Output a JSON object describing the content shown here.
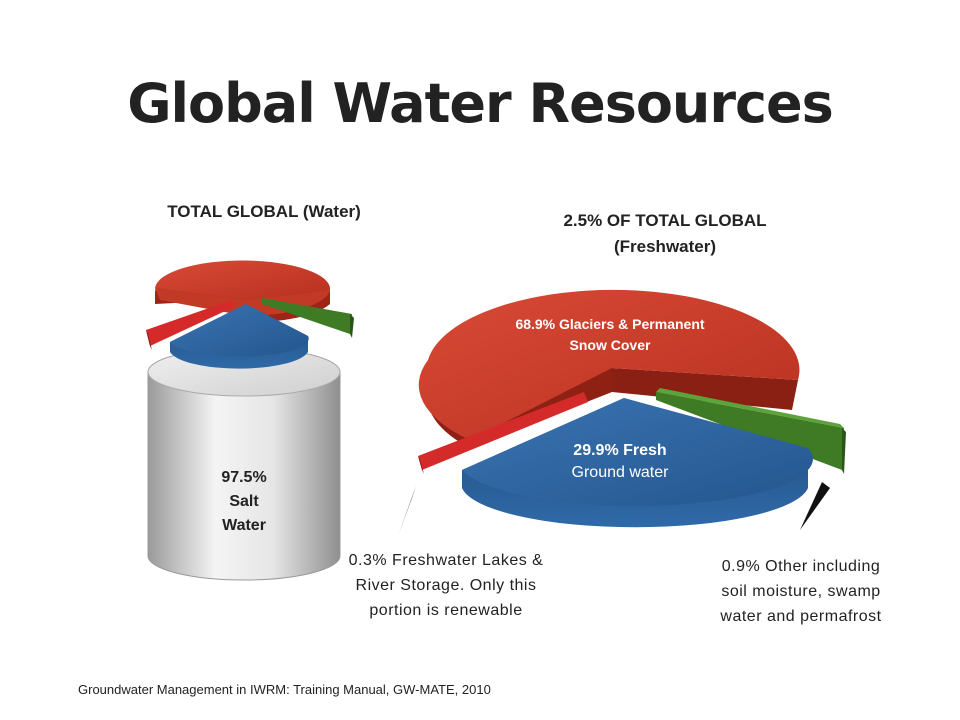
{
  "title": "Global Water Resources",
  "source": "Groundwater Management in IWRM: Training Manual, GW-MATE, 2010",
  "colors": {
    "salt": "#bfbfbf",
    "glaciers": "#c0392b",
    "ground": "#2b5c94",
    "lakes": "#d42a2a",
    "other": "#3f7a24"
  },
  "chart_data": [
    {
      "type": "pie",
      "title": "TOTAL GLOBAL (Water)",
      "slices": [
        {
          "label": "Salt Water",
          "value": 97.5,
          "label_text": [
            "97.5%",
            "Salt",
            "Water"
          ]
        },
        {
          "label": "Freshwater",
          "value": 2.5
        }
      ]
    },
    {
      "type": "pie",
      "title_lines": [
        "2.5% OF TOTAL GLOBAL",
        "(Freshwater)"
      ],
      "slices": [
        {
          "label": "Glaciers & Permanent Snow Cover",
          "value": 68.9,
          "label_text": [
            "68.9% Glaciers & Permanent",
            "Snow Cover"
          ]
        },
        {
          "label": "Fresh Ground water",
          "value": 29.9,
          "label_text": [
            "29.9% Fresh",
            "Ground water"
          ]
        },
        {
          "label": "Freshwater Lakes & River Storage",
          "value": 0.3,
          "label_text": [
            "0.3% Freshwater Lakes &",
            "River Storage. Only this",
            "portion is renewable"
          ]
        },
        {
          "label": "Other including soil moisture, swamp water and permafrost",
          "value": 0.9,
          "label_text": [
            "0.9% Other including",
            "soil moisture, swamp",
            "water and permafrost"
          ]
        }
      ]
    }
  ]
}
